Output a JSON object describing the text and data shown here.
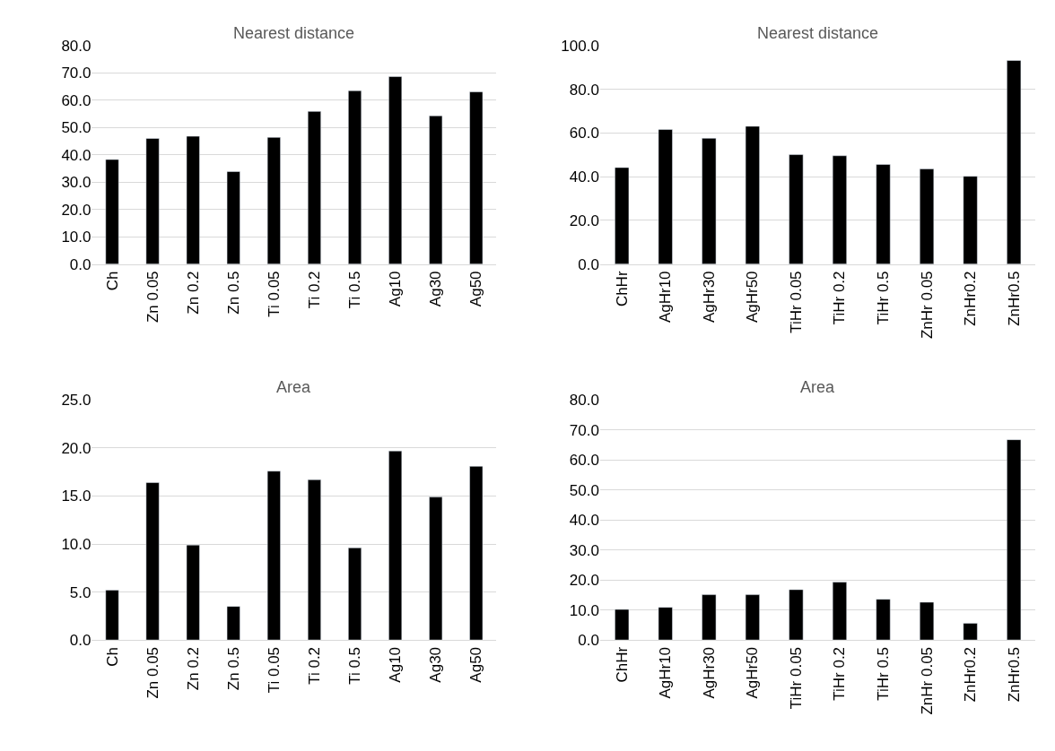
{
  "chart_data": [
    {
      "type": "bar",
      "title": "Nearest distance",
      "categories": [
        "Ch",
        "Zn 0.05",
        "Zn 0.2",
        "Zn 0.5",
        "Ti 0.05",
        "Ti 0.2",
        "Ti 0.5",
        "Ag10",
        "Ag30",
        "Ag50"
      ],
      "values": [
        38.3,
        46.0,
        46.8,
        33.9,
        46.4,
        55.9,
        63.5,
        68.7,
        54.3,
        63.1
      ],
      "color": "#000000",
      "ylim": [
        0,
        80
      ],
      "yticks": [
        {
          "value": 0,
          "label": "0.0"
        },
        {
          "value": 10,
          "label": "10.0"
        },
        {
          "value": 20,
          "label": "20.0"
        },
        {
          "value": 30,
          "label": "30.0"
        },
        {
          "value": 40,
          "label": "40.0"
        },
        {
          "value": 50,
          "label": "50.0"
        },
        {
          "value": 60,
          "label": "60.0"
        },
        {
          "value": 70,
          "label": "70.0"
        },
        {
          "value": 80,
          "label": "80.0"
        }
      ],
      "grid": "y"
    },
    {
      "type": "bar",
      "title": "Nearest distance",
      "categories": [
        "ChHr",
        "AgHr10",
        "AgHr30",
        "AgHr50",
        "TiHr 0.05",
        "TiHr 0.2",
        "TiHr 0.5",
        "ZnHr 0.05",
        "ZnHr0.2",
        "ZnHr0.5"
      ],
      "values": [
        44.2,
        61.6,
        57.6,
        63.1,
        50.1,
        49.6,
        45.6,
        43.6,
        40.2,
        93.2
      ],
      "color": "#000000",
      "ylim": [
        0,
        100
      ],
      "yticks": [
        {
          "value": 0,
          "label": "0.0"
        },
        {
          "value": 20,
          "label": "20.0"
        },
        {
          "value": 40,
          "label": "40.0"
        },
        {
          "value": 60,
          "label": "60.0"
        },
        {
          "value": 80,
          "label": "80.0"
        },
        {
          "value": 100,
          "label": "100.0"
        }
      ],
      "grid": "y"
    },
    {
      "type": "bar",
      "title": "Area",
      "categories": [
        "Ch",
        "Zn 0.05",
        "Zn 0.2",
        "Zn 0.5",
        "Ti 0.05",
        "Ti 0.2",
        "Ti 0.5",
        "Ag10",
        "Ag30",
        "Ag50"
      ],
      "values": [
        5.2,
        16.4,
        9.9,
        3.5,
        17.6,
        16.7,
        9.6,
        19.7,
        14.9,
        18.1
      ],
      "color": "#000000",
      "ylim": [
        0,
        25
      ],
      "yticks": [
        {
          "value": 0,
          "label": "0.0"
        },
        {
          "value": 5,
          "label": "5.0"
        },
        {
          "value": 10,
          "label": "10.0"
        },
        {
          "value": 15,
          "label": "15.0"
        },
        {
          "value": 20,
          "label": "20.0"
        },
        {
          "value": 25,
          "label": "25.0"
        }
      ],
      "grid": "y"
    },
    {
      "type": "bar",
      "title": "Area",
      "categories": [
        "ChHr",
        "AgHr10",
        "AgHr30",
        "AgHr50",
        "TiHr 0.05",
        "TiHr 0.2",
        "TiHr 0.5",
        "ZnHr 0.05",
        "ZnHr0.2",
        "ZnHr0.5"
      ],
      "values": [
        10.2,
        10.9,
        15.1,
        15.1,
        16.8,
        19.3,
        13.6,
        12.6,
        5.6,
        66.8
      ],
      "color": "#000000",
      "ylim": [
        0,
        80
      ],
      "yticks": [
        {
          "value": 0,
          "label": "0.0"
        },
        {
          "value": 10,
          "label": "10.0"
        },
        {
          "value": 20,
          "label": "20.0"
        },
        {
          "value": 30,
          "label": "30.0"
        },
        {
          "value": 40,
          "label": "40.0"
        },
        {
          "value": 50,
          "label": "50.0"
        },
        {
          "value": 60,
          "label": "60.0"
        },
        {
          "value": 70,
          "label": "70.0"
        },
        {
          "value": 80,
          "label": "80.0"
        }
      ],
      "grid": "y"
    }
  ]
}
